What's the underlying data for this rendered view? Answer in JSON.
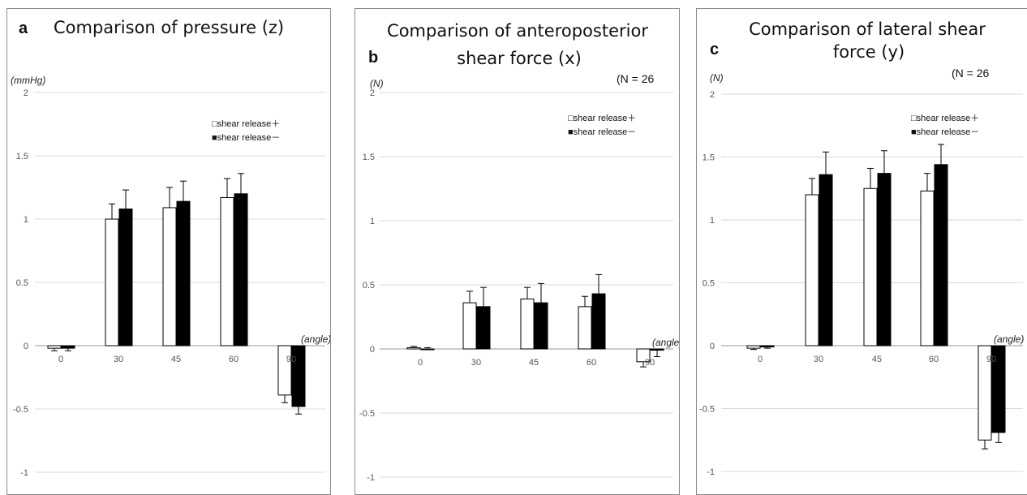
{
  "panels": [
    {
      "letter": "a",
      "title_lines": [
        "Comparison of pressure (z)"
      ],
      "n_label": "",
      "y_unit": "(mmHg)"
    },
    {
      "letter": "b",
      "title_lines": [
        "Comparison of anteroposterior",
        "shear force (x)"
      ],
      "n_label": "(N = 26",
      "y_unit": "(N)"
    },
    {
      "letter": "c",
      "title_lines": [
        "Comparison of lateral shear",
        "force (y)"
      ],
      "n_label": "(N = 26",
      "y_unit": "(N)"
    }
  ],
  "chart_data": [
    {
      "type": "bar",
      "title": "Comparison of pressure (z)",
      "ylabel": "(mmHg)",
      "xlabel": "(angle)",
      "categories": [
        "0",
        "30",
        "45",
        "60",
        "90"
      ],
      "yticks": [
        "2",
        "1.5",
        "1",
        "0.5",
        "0",
        "-0.5",
        "-1"
      ],
      "ylim": [
        -1,
        2
      ],
      "grid": true,
      "legend": "top-right",
      "series": [
        {
          "name": "□shear release＋",
          "fill": "#ffffff",
          "values": [
            -0.02,
            1.0,
            1.09,
            1.17,
            -0.39
          ],
          "errors": [
            0.02,
            0.12,
            0.16,
            0.15,
            0.06
          ]
        },
        {
          "name": "■shear release－",
          "fill": "#000000",
          "values": [
            -0.02,
            1.08,
            1.14,
            1.2,
            -0.48
          ],
          "errors": [
            0.02,
            0.15,
            0.16,
            0.16,
            0.06
          ]
        }
      ]
    },
    {
      "type": "bar",
      "title": "Comparison of anteroposterior shear force (x)",
      "ylabel": "(N)",
      "xlabel": "(angle)",
      "categories": [
        "0",
        "30",
        "45",
        "60",
        "90"
      ],
      "yticks": [
        "2",
        "1.5",
        "1",
        "0.5",
        "0",
        "-0.5",
        "-1"
      ],
      "ylim": [
        -1,
        2
      ],
      "grid": true,
      "legend": "top-right",
      "series": [
        {
          "name": "□shear release＋",
          "fill": "#ffffff",
          "values": [
            0.01,
            0.36,
            0.39,
            0.33,
            -0.1
          ],
          "errors": [
            0.01,
            0.09,
            0.09,
            0.08,
            0.04
          ]
        },
        {
          "name": "■shear release－",
          "fill": "#000000",
          "values": [
            0.0,
            0.33,
            0.36,
            0.43,
            -0.01
          ],
          "errors": [
            0.01,
            0.15,
            0.15,
            0.15,
            0.05
          ]
        }
      ]
    },
    {
      "type": "bar",
      "title": "Comparison of lateral shear force (y)",
      "ylabel": "(N)",
      "xlabel": "(angle)",
      "categories": [
        "0",
        "30",
        "45",
        "60",
        "90"
      ],
      "yticks": [
        "2",
        "1.5",
        "1",
        "0.5",
        "0",
        "-0.5",
        "-1"
      ],
      "ylim": [
        -1,
        2
      ],
      "grid": true,
      "legend": "top-right",
      "series": [
        {
          "name": "□shear release＋",
          "fill": "#ffffff",
          "values": [
            -0.02,
            1.2,
            1.25,
            1.23,
            -0.75
          ],
          "errors": [
            0.01,
            0.13,
            0.16,
            0.14,
            0.07
          ]
        },
        {
          "name": "■shear release－",
          "fill": "#000000",
          "values": [
            -0.01,
            1.36,
            1.37,
            1.44,
            -0.69
          ],
          "errors": [
            0.01,
            0.18,
            0.18,
            0.16,
            0.08
          ]
        }
      ]
    }
  ]
}
